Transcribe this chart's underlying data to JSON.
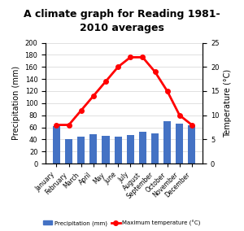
{
  "title": "A climate graph for Reading 1981-\n2010 averages",
  "months": [
    "January",
    "February",
    "March",
    "April",
    "May",
    "June",
    "July",
    "August",
    "September",
    "October",
    "November",
    "December"
  ],
  "precipitation": [
    62,
    41,
    45,
    48,
    46,
    45,
    47,
    52,
    50,
    70,
    66,
    63
  ],
  "temperature": [
    8,
    8,
    11,
    14,
    17,
    20,
    22,
    22,
    19,
    15,
    10,
    8
  ],
  "bar_color": "#4472C4",
  "line_color": "#FF0000",
  "marker_color": "#FF0000",
  "precip_ylim": [
    0,
    200
  ],
  "temp_ylim": [
    0,
    25
  ],
  "precip_yticks": [
    0,
    20,
    40,
    60,
    80,
    100,
    120,
    140,
    160,
    180,
    200
  ],
  "temp_yticks": [
    0,
    5,
    10,
    15,
    20,
    25
  ],
  "legend_precip": "Precipitation (mm)",
  "legend_temp": "Maximum temperature (°C)",
  "ylabel_left": "Precipitation (mm)",
  "ylabel_right": "Temperature (°C)",
  "background_color": "#FFFFFF",
  "grid_color": "#D3D3D3"
}
